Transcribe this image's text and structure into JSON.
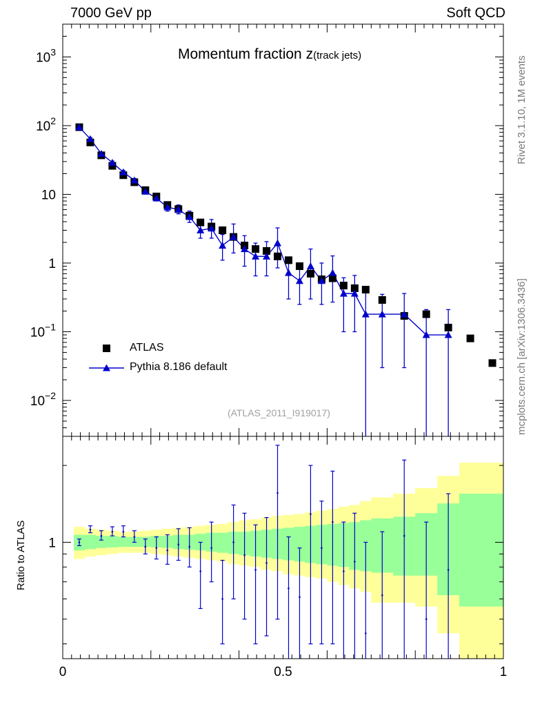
{
  "header": {
    "left": "7000 GeV pp",
    "right": "Soft QCD"
  },
  "side_labels": {
    "rivet": "Rivet 3.1.10,  1M events",
    "mcplots": "mcplots.cern.ch [arXiv:1306.3436]"
  },
  "colors": {
    "data": "#000000",
    "mc": "#0000cc",
    "band_inner": "#99ff99",
    "band_outer": "#ffff99",
    "side_text": "#7a7a7a",
    "analysis_id": "#a0a0a0"
  },
  "chart_data": {
    "type": "scatter",
    "title": "Momentum fraction ",
    "title_var": "z",
    "title_sub": "(track jets)",
    "analysis_id": "(ATLAS_2011_I919017)",
    "main_panel": {
      "yscale": "log",
      "ylim": [
        0.003,
        3000
      ],
      "xlim": [
        0,
        1
      ],
      "ytick_labels": [
        {
          "value": 0.01,
          "base": "10",
          "exp": "−2"
        },
        {
          "value": 0.1,
          "base": "10",
          "exp": "−1"
        },
        {
          "value": 1,
          "base": "1",
          "exp": ""
        },
        {
          "value": 10,
          "base": "10",
          "exp": ""
        },
        {
          "value": 100,
          "base": "10",
          "exp": "2"
        },
        {
          "value": 1000,
          "base": "10",
          "exp": "3"
        }
      ],
      "legend": {
        "position": "bottom-left"
      },
      "series": [
        {
          "name": "ATLAS",
          "marker": "square",
          "x": [
            0.0375,
            0.0625,
            0.0875,
            0.1125,
            0.1375,
            0.1625,
            0.1875,
            0.2125,
            0.2375,
            0.2625,
            0.2875,
            0.3125,
            0.3375,
            0.3625,
            0.3875,
            0.4125,
            0.4375,
            0.4625,
            0.4875,
            0.5125,
            0.5375,
            0.5625,
            0.5875,
            0.6125,
            0.6375,
            0.6625,
            0.6875,
            0.725,
            0.775,
            0.825,
            0.875,
            0.925,
            0.975
          ],
          "y": [
            95,
            57,
            37,
            26,
            19,
            15,
            11.5,
            9.3,
            7.0,
            6.1,
            4.9,
            3.9,
            3.4,
            3.0,
            2.4,
            1.8,
            1.6,
            1.5,
            1.25,
            1.1,
            0.9,
            0.7,
            0.58,
            0.6,
            0.47,
            0.43,
            0.41,
            0.29,
            0.17,
            0.18,
            0.115,
            0.08,
            0.035
          ]
        },
        {
          "name": "Pythia 8.186 default",
          "marker": "triangle",
          "x": [
            0.0375,
            0.0625,
            0.0875,
            0.1125,
            0.1375,
            0.1625,
            0.1875,
            0.2125,
            0.2375,
            0.2625,
            0.2875,
            0.3125,
            0.3375,
            0.3625,
            0.3875,
            0.4125,
            0.4375,
            0.4625,
            0.4875,
            0.5125,
            0.5375,
            0.5625,
            0.5875,
            0.6125,
            0.6375,
            0.6625,
            0.6875,
            0.725,
            0.775,
            0.825,
            0.875
          ],
          "y": [
            95,
            64,
            39,
            29,
            21,
            16,
            11,
            8.8,
            6.5,
            6.0,
            4.7,
            3.0,
            3.2,
            1.8,
            2.4,
            1.6,
            1.25,
            1.25,
            1.95,
            0.72,
            0.55,
            0.9,
            0.55,
            0.72,
            0.36,
            0.36,
            0.18,
            0.18,
            0.18,
            0.09,
            0.09
          ],
          "yerr_lo": [
            4,
            3,
            2,
            1.5,
            1.3,
            1,
            0.9,
            0.8,
            0.8,
            0.8,
            0.8,
            0.7,
            0.9,
            0.7,
            1.0,
            0.7,
            0.6,
            0.6,
            1.1,
            0.42,
            0.3,
            0.6,
            0.3,
            0.45,
            0.26,
            0.26,
            0.18,
            0.15,
            0.15,
            0.09,
            0.09
          ],
          "yerr_hi": [
            4,
            3,
            2,
            1.5,
            1.3,
            1,
            1.0,
            1.0,
            1.0,
            1.0,
            1.0,
            1.0,
            1.1,
            0.8,
            1.3,
            0.9,
            0.7,
            0.8,
            1.3,
            0.5,
            0.4,
            0.7,
            0.45,
            0.55,
            0.25,
            0.3,
            0.25,
            0.17,
            0.18,
            0.12,
            0.12
          ]
        }
      ]
    },
    "ratio_panel": {
      "ylabel": "Ratio to ATLAS",
      "ylim": [
        0.35,
        2.6
      ],
      "ytick_label": "1",
      "xlim": [
        0,
        1
      ],
      "xtick_labels": [
        "0",
        "0.5",
        "1"
      ],
      "xticks": [
        0,
        0.5,
        1
      ],
      "bins": [
        0.025,
        0.05,
        0.075,
        0.1,
        0.125,
        0.15,
        0.175,
        0.2,
        0.225,
        0.25,
        0.275,
        0.3,
        0.325,
        0.35,
        0.375,
        0.4,
        0.425,
        0.45,
        0.475,
        0.5,
        0.525,
        0.55,
        0.575,
        0.6,
        0.625,
        0.65,
        0.675,
        0.7,
        0.75,
        0.8,
        0.85,
        0.9,
        0.95,
        1.0
      ],
      "band_outer_lo": [
        0.86,
        0.88,
        0.89,
        0.9,
        0.91,
        0.91,
        0.91,
        0.9,
        0.89,
        0.88,
        0.87,
        0.86,
        0.85,
        0.84,
        0.82,
        0.81,
        0.8,
        0.78,
        0.77,
        0.75,
        0.74,
        0.73,
        0.72,
        0.7,
        0.68,
        0.66,
        0.64,
        0.58,
        0.58,
        0.56,
        0.44,
        0.35,
        0.35
      ],
      "band_outer_hi": [
        1.15,
        1.13,
        1.12,
        1.11,
        1.1,
        1.1,
        1.11,
        1.12,
        1.13,
        1.14,
        1.15,
        1.16,
        1.17,
        1.18,
        1.2,
        1.22,
        1.23,
        1.25,
        1.27,
        1.28,
        1.29,
        1.31,
        1.33,
        1.35,
        1.38,
        1.4,
        1.45,
        1.5,
        1.55,
        1.63,
        1.82,
        2.05,
        2.05
      ],
      "band_inner_lo": [
        0.93,
        0.94,
        0.95,
        0.955,
        0.96,
        0.96,
        0.96,
        0.955,
        0.95,
        0.94,
        0.935,
        0.93,
        0.92,
        0.91,
        0.9,
        0.89,
        0.88,
        0.87,
        0.86,
        0.85,
        0.84,
        0.83,
        0.82,
        0.81,
        0.8,
        0.78,
        0.77,
        0.76,
        0.74,
        0.74,
        0.62,
        0.56,
        0.56
      ],
      "band_inner_hi": [
        1.07,
        1.07,
        1.06,
        1.06,
        1.05,
        1.05,
        1.05,
        1.06,
        1.06,
        1.07,
        1.07,
        1.08,
        1.09,
        1.09,
        1.1,
        1.1,
        1.11,
        1.12,
        1.13,
        1.14,
        1.15,
        1.16,
        1.17,
        1.18,
        1.19,
        1.2,
        1.22,
        1.24,
        1.26,
        1.3,
        1.42,
        1.55,
        1.55
      ],
      "ratio": {
        "x": [
          0.0375,
          0.0625,
          0.0875,
          0.1125,
          0.1375,
          0.1625,
          0.1875,
          0.2125,
          0.2375,
          0.2625,
          0.2875,
          0.3125,
          0.3375,
          0.3625,
          0.3875,
          0.4125,
          0.4375,
          0.4625,
          0.4875,
          0.5125,
          0.5375,
          0.5625,
          0.5875,
          0.6125,
          0.6375,
          0.6625,
          0.6875,
          0.725,
          0.775,
          0.825,
          0.875
        ],
        "y": [
          1.0,
          1.12,
          1.06,
          1.1,
          1.1,
          1.05,
          0.96,
          0.95,
          0.93,
          0.98,
          0.96,
          0.77,
          0.95,
          0.6,
          1.0,
          0.89,
          0.78,
          0.83,
          1.56,
          0.66,
          0.61,
          1.29,
          0.95,
          1.2,
          0.77,
          0.84,
          0.44,
          0.62,
          1.06,
          0.5,
          0.78
        ],
        "lo": [
          0.97,
          1.09,
          1.02,
          1.06,
          1.05,
          1.0,
          0.9,
          0.86,
          0.82,
          0.85,
          0.8,
          0.55,
          0.7,
          0.4,
          0.6,
          0.5,
          0.4,
          0.43,
          0.5,
          0.27,
          0.3,
          0.4,
          0.4,
          0.4,
          0.3,
          0.3,
          0.0,
          0.0,
          0.0,
          0.0,
          0.0
        ],
        "hi": [
          1.03,
          1.16,
          1.11,
          1.15,
          1.16,
          1.11,
          1.03,
          1.05,
          1.07,
          1.13,
          1.14,
          1.0,
          1.2,
          0.85,
          1.4,
          1.3,
          1.17,
          1.25,
          2.4,
          1.05,
          0.95,
          2.0,
          1.45,
          1.9,
          1.2,
          1.3,
          1.0,
          1.1,
          2.1,
          1.2,
          1.55
        ]
      }
    }
  }
}
